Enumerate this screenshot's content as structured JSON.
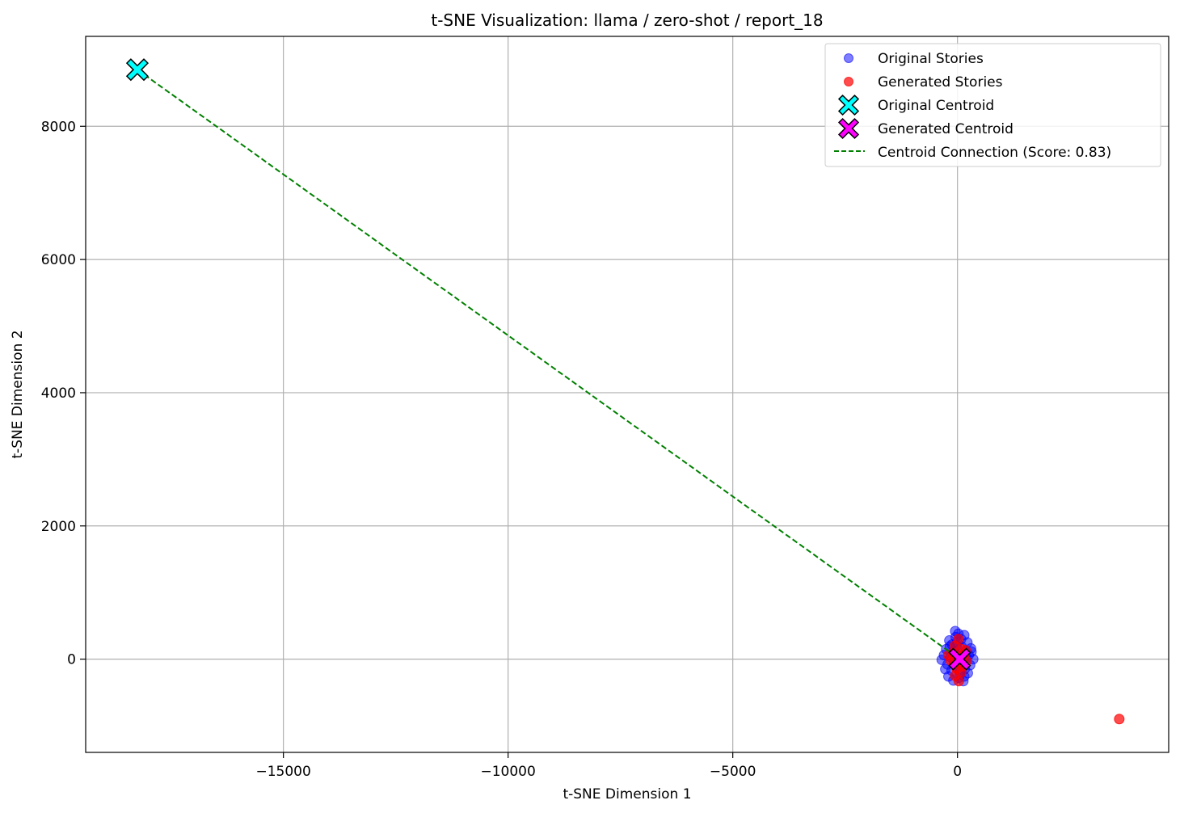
{
  "chart_data": {
    "type": "scatter",
    "title": "t-SNE Visualization: llama / zero-shot / report_18",
    "xlabel": "t-SNE Dimension 1",
    "ylabel": "t-SNE Dimension 2",
    "xlim": [
      -19400,
      4700
    ],
    "ylim": [
      -1400,
      9350
    ],
    "xticks": [
      -15000,
      -10000,
      -5000,
      0
    ],
    "yticks": [
      0,
      2000,
      4000,
      6000,
      8000
    ],
    "xtick_labels": [
      "−15000",
      "−10000",
      "−5000",
      "0"
    ],
    "ytick_labels": [
      "0",
      "2000",
      "4000",
      "6000",
      "8000"
    ],
    "grid": true,
    "legend_position": "top-right",
    "series": [
      {
        "name": "Original Stories",
        "marker": "circle",
        "color": "#0000ff",
        "opacity": 0.5,
        "points": [
          [
            -50,
            420
          ],
          [
            20,
            380
          ],
          [
            150,
            360
          ],
          [
            -180,
            280
          ],
          [
            80,
            300
          ],
          [
            -120,
            220
          ],
          [
            220,
            250
          ],
          [
            -20,
            200
          ],
          [
            100,
            180
          ],
          [
            -250,
            150
          ],
          [
            300,
            160
          ],
          [
            -80,
            120
          ],
          [
            180,
            110
          ],
          [
            -300,
            60
          ],
          [
            250,
            60
          ],
          [
            40,
            50
          ],
          [
            -150,
            30
          ],
          [
            350,
            0
          ],
          [
            -350,
            -10
          ],
          [
            -60,
            -20
          ],
          [
            120,
            -40
          ],
          [
            -220,
            -80
          ],
          [
            280,
            -90
          ],
          [
            -30,
            -110
          ],
          [
            160,
            -150
          ],
          [
            -130,
            -170
          ],
          [
            60,
            -200
          ],
          [
            230,
            -210
          ],
          [
            -200,
            -260
          ],
          [
            30,
            -280
          ],
          [
            -90,
            -320
          ],
          [
            130,
            -330
          ],
          [
            -10,
            250
          ],
          [
            200,
            20
          ],
          [
            -270,
            -150
          ],
          [
            80,
            -60
          ],
          [
            -170,
            190
          ],
          [
            310,
            110
          ],
          [
            -40,
            330
          ],
          [
            150,
            -260
          ]
        ]
      },
      {
        "name": "Generated Stories",
        "marker": "circle",
        "color": "#ff0000",
        "opacity": 0.7,
        "points": [
          [
            20,
            300
          ],
          [
            -60,
            200
          ],
          [
            90,
            150
          ],
          [
            -110,
            90
          ],
          [
            150,
            70
          ],
          [
            0,
            40
          ],
          [
            -150,
            -20
          ],
          [
            60,
            0
          ],
          [
            200,
            -30
          ],
          [
            -80,
            -70
          ],
          [
            120,
            -110
          ],
          [
            -20,
            -140
          ],
          [
            80,
            -200
          ],
          [
            -50,
            -250
          ],
          [
            30,
            -330
          ],
          [
            -200,
            60
          ],
          [
            180,
            130
          ],
          [
            110,
            -60
          ],
          [
            3600,
            -900
          ]
        ]
      },
      {
        "name": "Original Centroid",
        "marker": "x",
        "color": "#00ffff",
        "points": [
          [
            -18250,
            8850
          ]
        ]
      },
      {
        "name": "Generated Centroid",
        "marker": "x",
        "color": "#ff00ff",
        "points": [
          [
            50,
            0
          ]
        ]
      }
    ],
    "lines": [
      {
        "name": "Centroid Connection (Score: 0.83)",
        "style": "dashed",
        "color": "#008000",
        "from": [
          -18250,
          8850
        ],
        "to": [
          50,
          0
        ]
      }
    ]
  }
}
